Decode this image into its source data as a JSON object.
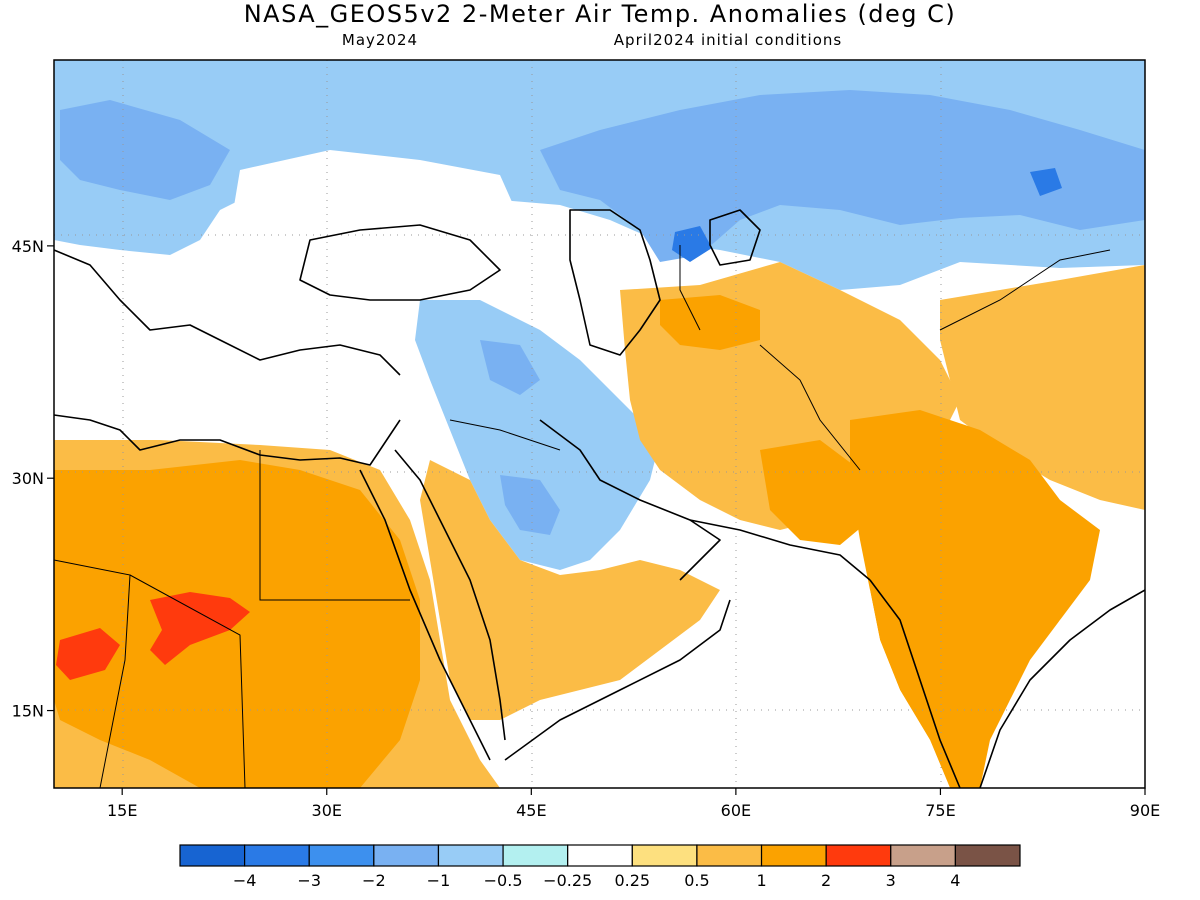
{
  "header": {
    "title": "NASA_GEOS5v2 2-Meter Air Temp. Anomalies (deg C)",
    "valid_month": "May2024",
    "init_conditions": "April2024 initial conditions"
  },
  "map": {
    "lon_range": [
      10,
      90
    ],
    "lat_range": [
      10,
      57
    ],
    "x_ticks": [
      {
        "lon": 15,
        "label": "15E"
      },
      {
        "lon": 30,
        "label": "30E"
      },
      {
        "lon": 45,
        "label": "45E"
      },
      {
        "lon": 60,
        "label": "60E"
      },
      {
        "lon": 75,
        "label": "75E"
      },
      {
        "lon": 90,
        "label": "90E"
      }
    ],
    "y_ticks": [
      {
        "lat": 45,
        "label": "45N"
      },
      {
        "lat": 30,
        "label": "30N"
      },
      {
        "lat": 15,
        "label": "15N"
      }
    ],
    "gridlines": "dotted"
  },
  "colorbar": {
    "colors": [
      "#1764d2",
      "#2a7ae6",
      "#3d90ee",
      "#79b1f2",
      "#98ccf6",
      "#b3f0f0",
      "#ffffff",
      "#fde07f",
      "#fbbc46",
      "#fba200",
      "#ff3a0d",
      "#c8a08a",
      "#7a5346"
    ],
    "labels": [
      "−4",
      "−3",
      "−2",
      "−1",
      "−0.5",
      "−0.25",
      "0.25",
      "0.5",
      "1",
      "2",
      "3",
      "4"
    ]
  }
}
